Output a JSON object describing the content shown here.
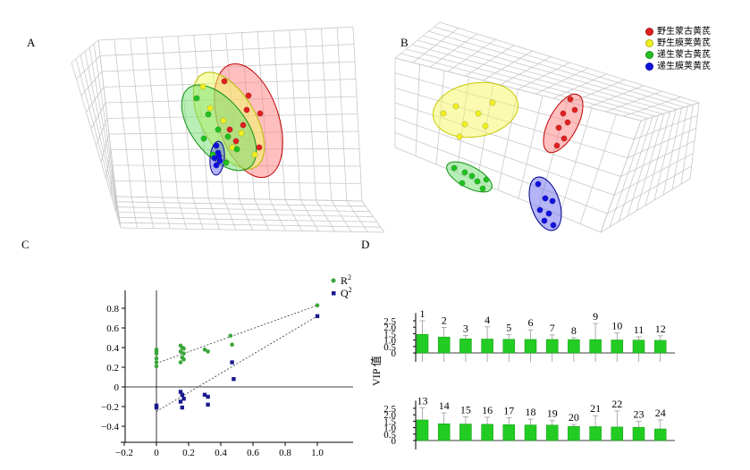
{
  "panels": {
    "a": "A",
    "b": "B",
    "c": "C",
    "d": "D"
  },
  "legend": [
    {
      "label": "野生蒙古黄芪",
      "color": "#e02020"
    },
    {
      "label": "野生膜荚黄芪",
      "color": "#f0f020"
    },
    {
      "label": "递生蒙古黄芪",
      "color": "#20c020"
    },
    {
      "label": "递生膜荚黄芪",
      "color": "#1010e0"
    }
  ],
  "chart_data": [
    {
      "type": "scatter",
      "panel": "A",
      "title": "",
      "groups": [
        {
          "name": "野生蒙古黄芪",
          "color": "#e02020",
          "n_points": 8
        },
        {
          "name": "野生膜荚黄芪",
          "color": "#f0f020",
          "n_points": 6
        },
        {
          "name": "递生蒙古黄芪",
          "color": "#20c020",
          "n_points": 8
        },
        {
          "name": "递生膜荚黄芪",
          "color": "#1010e0",
          "n_points": 6
        }
      ],
      "grid": true,
      "projection": "3D"
    },
    {
      "type": "scatter",
      "panel": "B",
      "title": "",
      "groups": [
        {
          "name": "野生蒙古黄芪",
          "color": "#e02020",
          "n_points": 7
        },
        {
          "name": "野生膜荚黄芪",
          "color": "#f0f020",
          "n_points": 7
        },
        {
          "name": "递生蒙古黄芪",
          "color": "#20c020",
          "n_points": 7
        },
        {
          "name": "递生膜荚黄芪",
          "color": "#1010e0",
          "n_points": 7
        }
      ],
      "grid": true,
      "projection": "3D"
    },
    {
      "type": "scatter",
      "panel": "C",
      "xlim": [
        -0.2,
        1.0
      ],
      "ylim": [
        -0.4,
        0.8
      ],
      "xticks": [
        "−0.2",
        "0",
        "0.2",
        "0.4",
        "0.6",
        "0.8",
        "1.0"
      ],
      "yticks": [
        "−0.4",
        "−0.2",
        "0",
        "0.2",
        "0.4",
        "0.6",
        "0.8"
      ],
      "series": [
        {
          "name": "R2",
          "label_main": "R",
          "label_sup": "2",
          "color": "#3aa63a",
          "marker": "circle",
          "points": [
            [
              0.0,
              0.38
            ],
            [
              0.0,
              0.36
            ],
            [
              0.0,
              0.34
            ],
            [
              0.0,
              0.29
            ],
            [
              0.0,
              0.25
            ],
            [
              0.0,
              0.21
            ],
            [
              0.15,
              0.42
            ],
            [
              0.16,
              0.4
            ],
            [
              0.17,
              0.39
            ],
            [
              0.15,
              0.36
            ],
            [
              0.17,
              0.34
            ],
            [
              0.16,
              0.3
            ],
            [
              0.17,
              0.28
            ],
            [
              0.15,
              0.25
            ],
            [
              0.3,
              0.38
            ],
            [
              0.32,
              0.36
            ],
            [
              0.46,
              0.52
            ],
            [
              0.47,
              0.43
            ],
            [
              1.0,
              0.83
            ]
          ],
          "trend": [
            [
              0.0,
              0.24
            ],
            [
              1.0,
              0.83
            ]
          ]
        },
        {
          "name": "Q2",
          "label_main": "Q",
          "label_sup": "2",
          "color": "#1a1a8c",
          "marker": "square",
          "points": [
            [
              0.0,
              -0.19
            ],
            [
              0.0,
              -0.21
            ],
            [
              0.15,
              -0.05
            ],
            [
              0.16,
              -0.08
            ],
            [
              0.17,
              -0.12
            ],
            [
              0.15,
              -0.15
            ],
            [
              0.16,
              -0.21
            ],
            [
              0.3,
              -0.08
            ],
            [
              0.32,
              -0.1
            ],
            [
              0.32,
              -0.18
            ],
            [
              0.47,
              0.25
            ],
            [
              0.48,
              0.08
            ],
            [
              1.0,
              0.72
            ]
          ],
          "trend": [
            [
              0.0,
              -0.25
            ],
            [
              1.0,
              0.72
            ]
          ]
        }
      ]
    },
    {
      "type": "bar",
      "panel": "D",
      "ylabel": "VIP 值",
      "ylim": [
        0,
        2.5
      ],
      "yticks": [
        "0",
        "0.5",
        "1.0",
        "1.5",
        "2.0",
        "2.5"
      ],
      "color": "#22cc22",
      "rows": [
        {
          "categories": [
            "1",
            "2",
            "3",
            "4",
            "5",
            "6",
            "7",
            "8",
            "9",
            "10",
            "11",
            "12"
          ],
          "values": [
            1.45,
            1.24,
            1.1,
            1.08,
            1.06,
            1.05,
            1.05,
            1.04,
            1.04,
            1.01,
            1.0,
            0.98
          ],
          "errors": [
            1.05,
            0.75,
            0.25,
            0.95,
            0.35,
            0.75,
            0.35,
            0.15,
            1.25,
            0.55,
            0.25,
            0.35
          ]
        },
        {
          "categories": [
            "13",
            "14",
            "15",
            "16",
            "17",
            "18",
            "19",
            "20",
            "21",
            "22",
            "23",
            "24"
          ],
          "values": [
            1.6,
            1.3,
            1.28,
            1.26,
            1.23,
            1.21,
            1.2,
            1.1,
            1.08,
            1.05,
            1.03,
            0.9
          ],
          "errors": [
            0.95,
            0.85,
            0.55,
            0.55,
            0.55,
            0.45,
            0.35,
            0.15,
            0.85,
            1.25,
            0.45,
            0.7
          ]
        }
      ]
    }
  ]
}
